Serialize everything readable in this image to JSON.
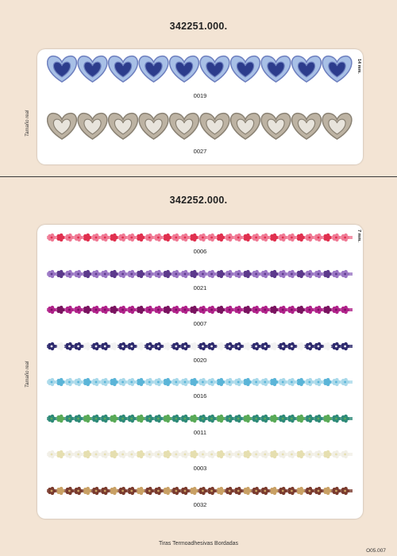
{
  "section1": {
    "title": "342251.000.",
    "side_label": "Tamaño real",
    "measure": "14 mm.",
    "items": [
      {
        "code": "0019",
        "color": "#6d7fbf",
        "light": "#a8c0e6",
        "dark": "#2c3c8c"
      },
      {
        "code": "0027",
        "color": "#8a8274",
        "light": "#bdb3a3",
        "dark": "#e8e4dc"
      }
    ]
  },
  "section2": {
    "title": "342252.000.",
    "side_label": "Tamaño real",
    "measure": "7 mm.",
    "items": [
      {
        "code": "0006",
        "main": "#f07a95",
        "accent": "#e0304f"
      },
      {
        "code": "0021",
        "main": "#9a76c4",
        "accent": "#5d3a8c"
      },
      {
        "code": "0007",
        "main": "#b0238a",
        "accent": "#7a1460"
      },
      {
        "code": "0020",
        "main": "#2e2a6e",
        "accent": "#f2f2f2"
      },
      {
        "code": "0016",
        "main": "#a9d9ea",
        "accent": "#5bb5d8"
      },
      {
        "code": "0011",
        "main": "#2e8a78",
        "accent": "#5aaa58"
      },
      {
        "code": "0003",
        "main": "#f1efe6",
        "accent": "#e6dfb0"
      },
      {
        "code": "0032",
        "main": "#7a3b2e",
        "accent": "#c9a165"
      }
    ]
  },
  "footer": "Tiras Termoadhesivas Bordadas",
  "page_ref": "O05.007"
}
